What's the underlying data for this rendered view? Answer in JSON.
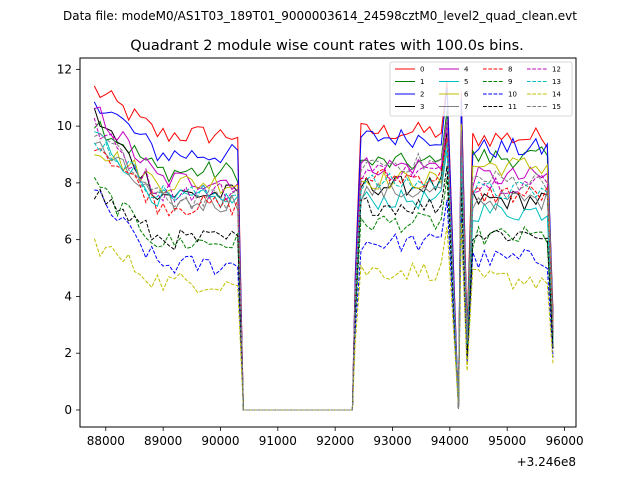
{
  "chart_data": {
    "type": "line",
    "suptitle": "Data file: modeM0/AS1T03_189T01_9000003614_24598cztM0_level2_quad_clean.evt",
    "title": "Quadrant 2 module wise count rates with 100.0s bins.",
    "xlabel": "",
    "ylabel": "",
    "x_offset_label": "+3.246e8",
    "xlim": [
      87550,
      96200
    ],
    "ylim": [
      -0.6,
      12.4
    ],
    "xticks": [
      88000,
      89000,
      90000,
      91000,
      92000,
      93000,
      94000,
      95000,
      96000
    ],
    "yticks": [
      0,
      2,
      4,
      6,
      8,
      10,
      12
    ],
    "xtick_labels": [
      "88000",
      "89000",
      "90000",
      "91000",
      "92000",
      "93000",
      "94000",
      "95000",
      "96000"
    ],
    "ytick_labels": [
      "0",
      "2",
      "4",
      "6",
      "8",
      "10",
      "12"
    ],
    "legend_position": "top-right",
    "segments": [
      {
        "start": 87800,
        "end": 90300
      },
      {
        "start": 92350,
        "end": 93950
      },
      {
        "start": 94200,
        "end": 95800
      }
    ],
    "zero_interval": [
      90400,
      92300
    ],
    "dip_time": 94150,
    "series": [
      {
        "name": "0",
        "color": "#ff0000",
        "dash": "solid",
        "values": [
          11.3,
          9.7,
          9.8,
          9.6
        ]
      },
      {
        "name": "1",
        "color": "#008000",
        "dash": "solid",
        "values": [
          10.2,
          8.4,
          8.7,
          8.9
        ]
      },
      {
        "name": "2",
        "color": "#0000ff",
        "dash": "solid",
        "values": [
          11.0,
          9.0,
          9.6,
          9.2
        ]
      },
      {
        "name": "3",
        "color": "#000000",
        "dash": "solid",
        "values": [
          10.4,
          7.6,
          7.9,
          7.4
        ]
      },
      {
        "name": "4",
        "color": "#bf00bf",
        "dash": "solid",
        "values": [
          10.6,
          8.1,
          8.6,
          8.2
        ]
      },
      {
        "name": "5",
        "color": "#00bfbf",
        "dash": "solid",
        "values": [
          9.8,
          7.4,
          7.4,
          7.0
        ]
      },
      {
        "name": "6",
        "color": "#bfbf00",
        "dash": "solid",
        "values": [
          9.3,
          8.0,
          8.1,
          8.6
        ]
      },
      {
        "name": "7",
        "color": "#808080",
        "dash": "solid",
        "values": [
          9.4,
          7.3,
          7.7,
          7.4
        ]
      },
      {
        "name": "8",
        "color": "#ff0000",
        "dash": "dashed",
        "values": [
          9.5,
          7.2,
          8.2,
          7.6
        ]
      },
      {
        "name": "9",
        "color": "#008000",
        "dash": "dashed",
        "values": [
          7.9,
          5.9,
          6.6,
          6.1
        ]
      },
      {
        "name": "10",
        "color": "#0000ff",
        "dash": "dashed",
        "values": [
          7.6,
          5.1,
          5.9,
          5.3
        ]
      },
      {
        "name": "11",
        "color": "#000000",
        "dash": "dashed",
        "values": [
          7.7,
          6.0,
          7.2,
          6.2
        ]
      },
      {
        "name": "12",
        "color": "#bf00bf",
        "dash": "dashed",
        "values": [
          10.0,
          7.7,
          8.4,
          8.0
        ]
      },
      {
        "name": "13",
        "color": "#00bfbf",
        "dash": "dashed",
        "values": [
          9.6,
          7.6,
          8.0,
          7.7
        ]
      },
      {
        "name": "14",
        "color": "#bfbf00",
        "dash": "dashed",
        "values": [
          5.9,
          4.5,
          4.9,
          4.6
        ]
      },
      {
        "name": "15",
        "color": "#808080",
        "dash": "dashed",
        "values": [
          9.9,
          7.4,
          8.7,
          8.1
        ]
      }
    ]
  }
}
